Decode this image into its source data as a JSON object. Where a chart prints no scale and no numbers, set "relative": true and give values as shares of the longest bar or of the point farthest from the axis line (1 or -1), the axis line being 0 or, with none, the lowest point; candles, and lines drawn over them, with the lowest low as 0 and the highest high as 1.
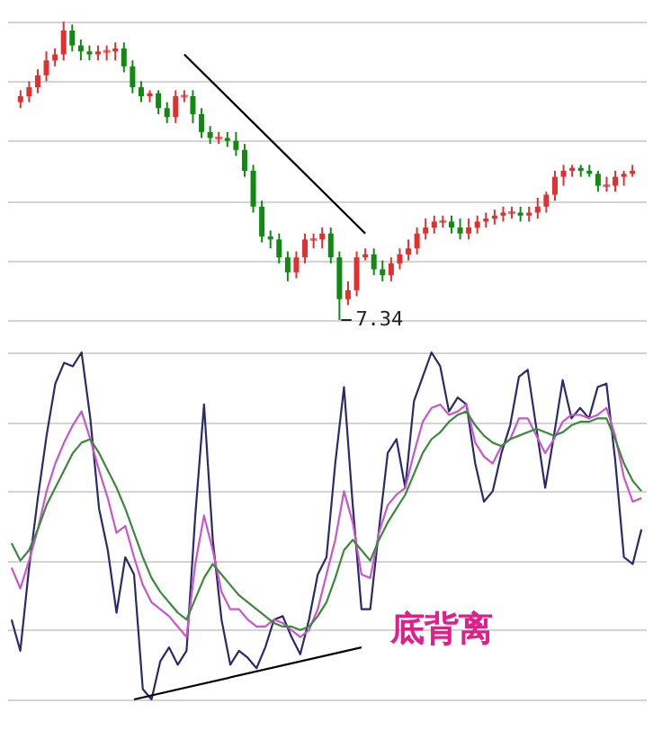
{
  "chart_data": [
    {
      "type": "candlestick",
      "relative": true,
      "grid": true,
      "categories": [
        null,
        null,
        null,
        null,
        null,
        null,
        null,
        null,
        null,
        null,
        null,
        null,
        null,
        null,
        null,
        null,
        null,
        null,
        null,
        null,
        null,
        null,
        null,
        null,
        null,
        null,
        null,
        null,
        null,
        null,
        null,
        null,
        null,
        null,
        null,
        null,
        null,
        null,
        null,
        null,
        null,
        null,
        null,
        null,
        null,
        null,
        null,
        null,
        null,
        null,
        null,
        null,
        null,
        null,
        null,
        null,
        null,
        null,
        null,
        null,
        null,
        null,
        null,
        null,
        null,
        null,
        null,
        null,
        null,
        null,
        null,
        null
      ],
      "ohlc": [
        [
          0.73,
          0.77,
          0.71,
          0.75
        ],
        [
          0.75,
          0.8,
          0.73,
          0.78
        ],
        [
          0.78,
          0.84,
          0.76,
          0.82
        ],
        [
          0.82,
          0.9,
          0.8,
          0.87
        ],
        [
          0.87,
          0.91,
          0.85,
          0.89
        ],
        [
          0.89,
          1.0,
          0.87,
          0.97
        ],
        [
          0.97,
          0.99,
          0.9,
          0.92
        ],
        [
          0.92,
          0.94,
          0.87,
          0.9
        ],
        [
          0.9,
          0.92,
          0.87,
          0.89
        ],
        [
          0.89,
          0.92,
          0.87,
          0.9
        ],
        [
          0.9,
          0.92,
          0.87,
          0.9
        ],
        [
          0.9,
          0.93,
          0.87,
          0.91
        ],
        [
          0.91,
          0.93,
          0.83,
          0.85
        ],
        [
          0.85,
          0.87,
          0.76,
          0.78
        ],
        [
          0.78,
          0.8,
          0.73,
          0.75
        ],
        [
          0.75,
          0.77,
          0.73,
          0.76
        ],
        [
          0.76,
          0.77,
          0.69,
          0.71
        ],
        [
          0.71,
          0.73,
          0.66,
          0.68
        ],
        [
          0.68,
          0.77,
          0.66,
          0.75
        ],
        [
          0.75,
          0.77,
          0.73,
          0.75
        ],
        [
          0.75,
          0.77,
          0.66,
          0.69
        ],
        [
          0.69,
          0.71,
          0.61,
          0.63
        ],
        [
          0.63,
          0.65,
          0.59,
          0.61
        ],
        [
          0.61,
          0.63,
          0.59,
          0.61
        ],
        [
          0.61,
          0.63,
          0.58,
          0.6
        ],
        [
          0.6,
          0.63,
          0.55,
          0.57
        ],
        [
          0.57,
          0.59,
          0.48,
          0.5
        ],
        [
          0.5,
          0.52,
          0.36,
          0.38
        ],
        [
          0.38,
          0.4,
          0.26,
          0.28
        ],
        [
          0.28,
          0.3,
          0.24,
          0.27
        ],
        [
          0.27,
          0.29,
          0.19,
          0.21
        ],
        [
          0.21,
          0.23,
          0.13,
          0.16
        ],
        [
          0.16,
          0.23,
          0.14,
          0.21
        ],
        [
          0.21,
          0.29,
          0.19,
          0.27
        ],
        [
          0.27,
          0.29,
          0.24,
          0.27
        ],
        [
          0.27,
          0.31,
          0.24,
          0.29
        ],
        [
          0.29,
          0.31,
          0.19,
          0.21
        ],
        [
          0.21,
          0.23,
          0.0,
          0.07
        ],
        [
          0.07,
          0.13,
          0.05,
          0.1
        ],
        [
          0.1,
          0.23,
          0.08,
          0.21
        ],
        [
          0.21,
          0.24,
          0.2,
          0.22
        ],
        [
          0.22,
          0.24,
          0.15,
          0.17
        ],
        [
          0.17,
          0.2,
          0.13,
          0.15
        ],
        [
          0.15,
          0.21,
          0.13,
          0.19
        ],
        [
          0.19,
          0.24,
          0.17,
          0.22
        ],
        [
          0.22,
          0.27,
          0.2,
          0.24
        ],
        [
          0.24,
          0.31,
          0.22,
          0.29
        ],
        [
          0.29,
          0.34,
          0.27,
          0.31
        ],
        [
          0.31,
          0.35,
          0.29,
          0.33
        ],
        [
          0.33,
          0.35,
          0.31,
          0.33
        ],
        [
          0.33,
          0.35,
          0.29,
          0.31
        ],
        [
          0.31,
          0.34,
          0.27,
          0.29
        ],
        [
          0.29,
          0.34,
          0.27,
          0.31
        ],
        [
          0.31,
          0.35,
          0.29,
          0.33
        ],
        [
          0.33,
          0.36,
          0.31,
          0.34
        ],
        [
          0.34,
          0.37,
          0.32,
          0.35
        ],
        [
          0.35,
          0.38,
          0.33,
          0.36
        ],
        [
          0.36,
          0.38,
          0.34,
          0.36
        ],
        [
          0.36,
          0.38,
          0.33,
          0.35
        ],
        [
          0.35,
          0.38,
          0.33,
          0.36
        ],
        [
          0.36,
          0.41,
          0.34,
          0.38
        ],
        [
          0.38,
          0.43,
          0.36,
          0.42
        ],
        [
          0.42,
          0.5,
          0.4,
          0.48
        ],
        [
          0.48,
          0.52,
          0.45,
          0.5
        ],
        [
          0.5,
          0.52,
          0.48,
          0.51
        ],
        [
          0.51,
          0.52,
          0.48,
          0.5
        ],
        [
          0.5,
          0.52,
          0.48,
          0.49
        ],
        [
          0.49,
          0.5,
          0.43,
          0.45
        ],
        [
          0.45,
          0.48,
          0.43,
          0.45
        ],
        [
          0.45,
          0.5,
          0.43,
          0.48
        ],
        [
          0.48,
          0.5,
          0.45,
          0.49
        ],
        [
          0.49,
          0.52,
          0.48,
          0.5
        ]
      ],
      "colors": [
        "#e03030",
        "#e03030",
        "#e03030",
        "#e03030",
        "#e03030",
        "#e03030",
        "#108a10",
        "#108a10",
        "#108a10",
        "#e03030",
        "#e03030",
        "#e03030",
        "#108a10",
        "#108a10",
        "#108a10",
        "#e03030",
        "#108a10",
        "#108a10",
        "#e03030",
        "#e03030",
        "#108a10",
        "#108a10",
        "#108a10",
        "#e03030",
        "#108a10",
        "#108a10",
        "#108a10",
        "#108a10",
        "#108a10",
        "#108a10",
        "#108a10",
        "#108a10",
        "#e03030",
        "#e03030",
        "#e03030",
        "#e03030",
        "#108a10",
        "#108a10",
        "#e03030",
        "#e03030",
        "#e03030",
        "#108a10",
        "#108a10",
        "#e03030",
        "#e03030",
        "#e03030",
        "#e03030",
        "#e03030",
        "#e03030",
        "#e03030",
        "#108a10",
        "#108a10",
        "#e03030",
        "#e03030",
        "#e03030",
        "#e03030",
        "#e03030",
        "#e03030",
        "#108a10",
        "#e03030",
        "#e03030",
        "#e03030",
        "#e03030",
        "#e03030",
        "#e03030",
        "#108a10",
        "#108a10",
        "#108a10",
        "#e03030",
        "#e03030",
        "#e03030",
        "#e03030"
      ],
      "series": [
        {
          "type": "line",
          "color": "#000000",
          "values": [
            null,
            null,
            null,
            null,
            null,
            null,
            null,
            null,
            null,
            null,
            null,
            null,
            null,
            null,
            null,
            null,
            null,
            null,
            null,
            0.89,
            null,
            null,
            null,
            null,
            null,
            null,
            null,
            null,
            null,
            null,
            null,
            null,
            null,
            null,
            null,
            null,
            null,
            null,
            null,
            null,
            0.29,
            null,
            null,
            null,
            null,
            null,
            null,
            null,
            null,
            null,
            null,
            null,
            null,
            null,
            null,
            null,
            null,
            null,
            null,
            null,
            null,
            null,
            null,
            null,
            null,
            null,
            null,
            null,
            null,
            null,
            null,
            null
          ]
        }
      ],
      "annotations": [
        "7.34"
      ]
    },
    {
      "type": "line",
      "relative": true,
      "grid": true,
      "categories": [
        null,
        null,
        null,
        null,
        null,
        null,
        null,
        null,
        null,
        null,
        null,
        null,
        null,
        null,
        null,
        null,
        null,
        null,
        null,
        null,
        null,
        null,
        null,
        null,
        null,
        null,
        null,
        null,
        null,
        null,
        null,
        null,
        null,
        null,
        null,
        null,
        null,
        null,
        null,
        null,
        null,
        null,
        null,
        null,
        null,
        null,
        null,
        null,
        null,
        null,
        null,
        null,
        null,
        null,
        null,
        null,
        null,
        null,
        null,
        null,
        null,
        null,
        null,
        null,
        null,
        null,
        null,
        null,
        null,
        null,
        null,
        null,
        null
      ],
      "series": [
        {
          "color": "#2a2a6e",
          "values": [
            0.23,
            0.14,
            0.38,
            0.58,
            0.76,
            0.91,
            0.97,
            0.96,
            1.0,
            0.81,
            0.55,
            0.43,
            0.25,
            0.41,
            0.36,
            0.03,
            0.0,
            0.11,
            0.15,
            0.1,
            0.14,
            0.53,
            0.85,
            0.46,
            0.23,
            0.1,
            0.14,
            0.12,
            0.09,
            0.15,
            0.23,
            0.24,
            0.18,
            0.13,
            0.23,
            0.36,
            0.41,
            0.68,
            0.9,
            0.56,
            0.26,
            0.26,
            0.49,
            0.71,
            0.75,
            0.61,
            0.86,
            0.93,
            1.0,
            0.96,
            0.83,
            0.87,
            0.85,
            0.68,
            0.57,
            0.6,
            0.71,
            0.79,
            0.93,
            0.95,
            0.78,
            0.61,
            0.76,
            0.92,
            0.81,
            0.84,
            0.81,
            0.9,
            0.91,
            0.69,
            0.41,
            0.39,
            0.49
          ]
        },
        {
          "color": "#cc55cc",
          "values": [
            0.38,
            0.32,
            0.4,
            0.49,
            0.6,
            0.68,
            0.74,
            0.79,
            0.83,
            0.75,
            0.66,
            0.58,
            0.48,
            0.5,
            0.41,
            0.33,
            0.28,
            0.26,
            0.24,
            0.21,
            0.18,
            0.39,
            0.53,
            0.43,
            0.31,
            0.26,
            0.26,
            0.23,
            0.21,
            0.21,
            0.23,
            0.22,
            0.2,
            0.18,
            0.2,
            0.26,
            0.36,
            0.46,
            0.6,
            0.51,
            0.36,
            0.35,
            0.48,
            0.56,
            0.59,
            0.61,
            0.71,
            0.8,
            0.84,
            0.85,
            0.82,
            0.83,
            0.85,
            0.74,
            0.7,
            0.68,
            0.73,
            0.75,
            0.81,
            0.81,
            0.76,
            0.71,
            0.75,
            0.8,
            0.82,
            0.82,
            0.81,
            0.82,
            0.84,
            0.76,
            0.64,
            0.57,
            0.58
          ]
        },
        {
          "color": "#3a8a3a",
          "values": [
            0.45,
            0.4,
            0.43,
            0.49,
            0.56,
            0.61,
            0.66,
            0.71,
            0.74,
            0.75,
            0.71,
            0.66,
            0.61,
            0.55,
            0.48,
            0.41,
            0.35,
            0.31,
            0.28,
            0.25,
            0.23,
            0.29,
            0.35,
            0.39,
            0.36,
            0.33,
            0.3,
            0.28,
            0.26,
            0.24,
            0.22,
            0.21,
            0.21,
            0.2,
            0.21,
            0.24,
            0.28,
            0.35,
            0.43,
            0.46,
            0.43,
            0.4,
            0.46,
            0.51,
            0.55,
            0.59,
            0.65,
            0.71,
            0.75,
            0.77,
            0.8,
            0.82,
            0.83,
            0.79,
            0.76,
            0.74,
            0.73,
            0.75,
            0.76,
            0.77,
            0.78,
            0.77,
            0.76,
            0.77,
            0.79,
            0.8,
            0.8,
            0.81,
            0.81,
            0.75,
            0.68,
            0.63,
            0.6
          ]
        },
        {
          "color": "#000000",
          "values": [
            null,
            null,
            null,
            null,
            null,
            null,
            null,
            null,
            null,
            null,
            null,
            null,
            null,
            null,
            0.0,
            null,
            null,
            null,
            null,
            null,
            null,
            null,
            null,
            null,
            null,
            null,
            null,
            null,
            null,
            null,
            null,
            null,
            null,
            null,
            null,
            null,
            null,
            null,
            null,
            null,
            0.15,
            null,
            null,
            null,
            null,
            null,
            null,
            null,
            null,
            null,
            null,
            null,
            null,
            null,
            null,
            null,
            null,
            null,
            null,
            null,
            null,
            null,
            null,
            null,
            null,
            null,
            null,
            null,
            null,
            null,
            null,
            null,
            null
          ]
        }
      ],
      "annotations": [
        "底背离"
      ]
    }
  ]
}
